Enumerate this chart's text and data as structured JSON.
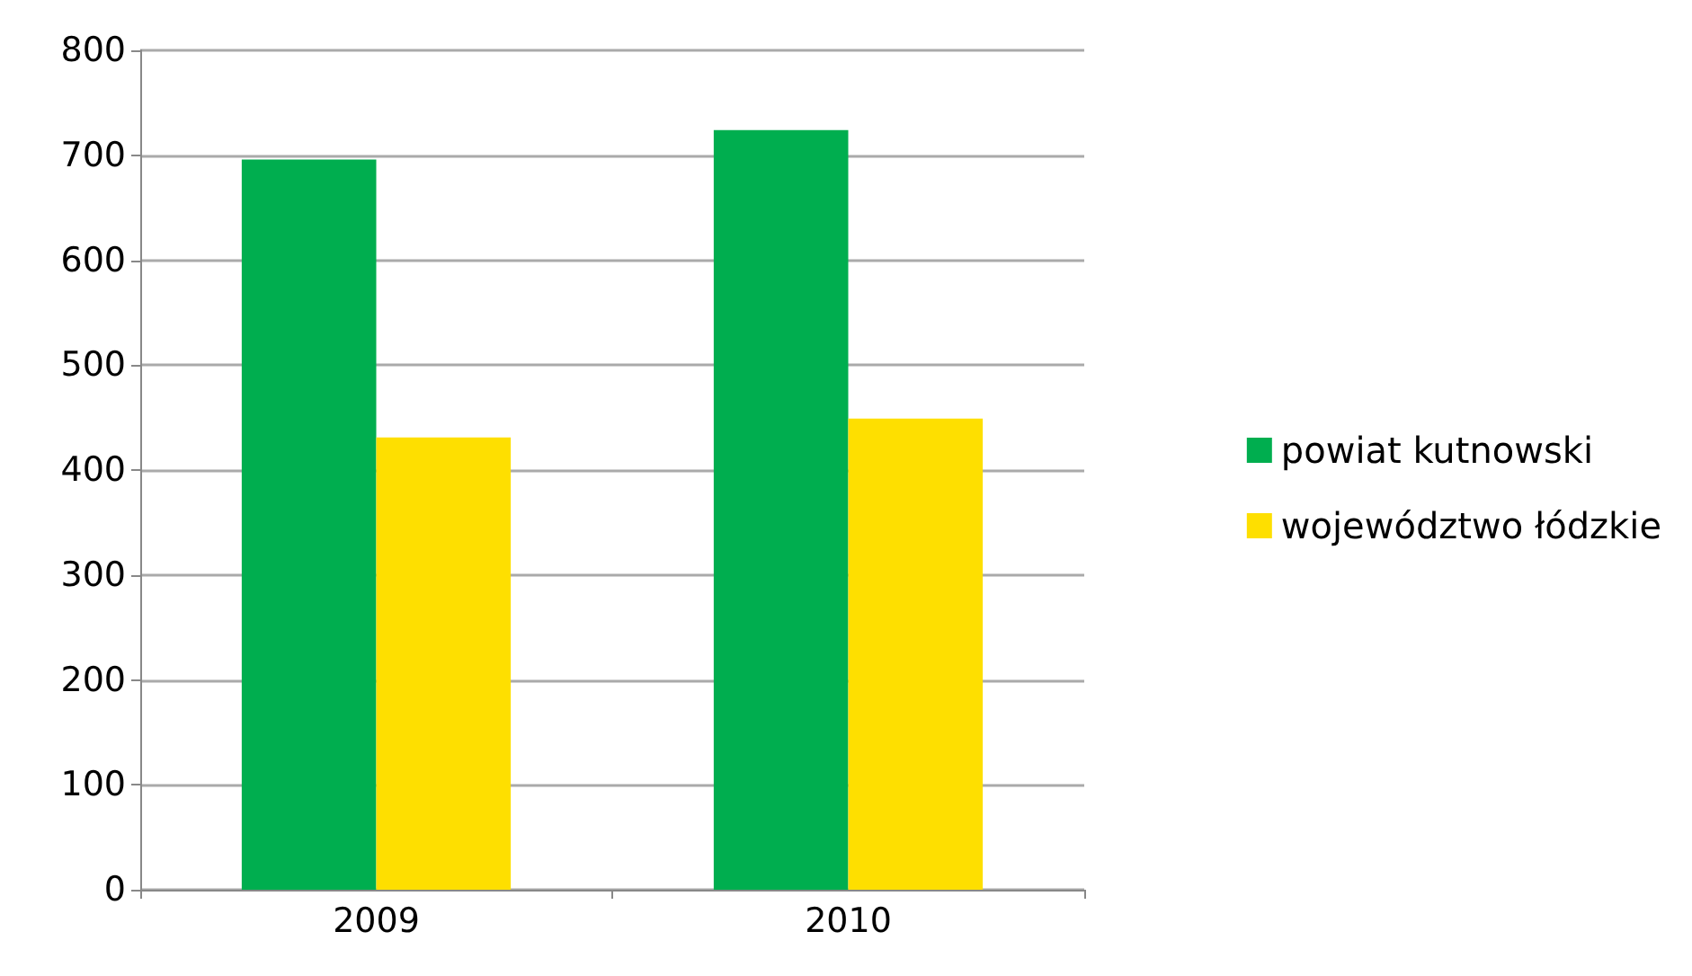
{
  "chart_data": {
    "type": "bar",
    "categories": [
      "2009",
      "2010"
    ],
    "series": [
      {
        "name": "powiat kutnowski",
        "color": "#00ae4f",
        "values": [
          696,
          724
        ]
      },
      {
        "name": "województwo łódzkie",
        "color": "#fedf00",
        "values": [
          431,
          449
        ]
      }
    ],
    "ylim": [
      0,
      800
    ],
    "yticks": [
      0,
      100,
      200,
      300,
      400,
      500,
      600,
      700,
      800
    ],
    "grid": "y",
    "legend": "right"
  }
}
